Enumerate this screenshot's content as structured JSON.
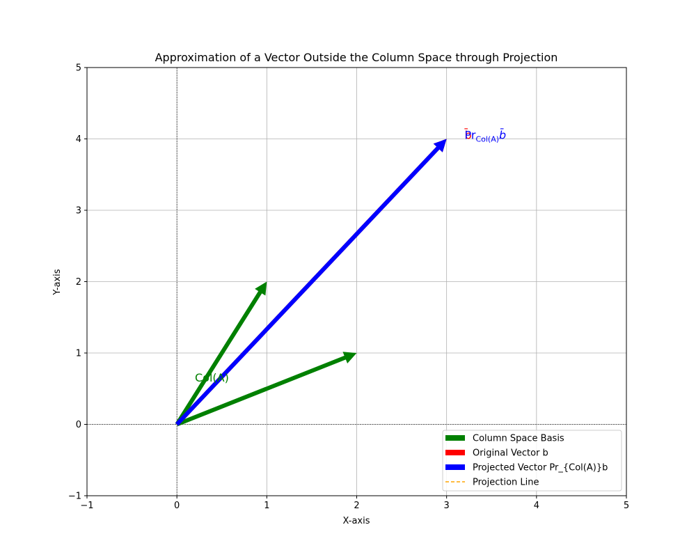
{
  "chart_data": {
    "type": "quiver",
    "title": "Approximation of a Vector Outside the Column Space through Projection",
    "xlabel": "X-axis",
    "ylabel": "Y-axis",
    "xlim": [
      -1,
      5
    ],
    "ylim": [
      -1,
      5
    ],
    "xticks": [
      -1,
      0,
      1,
      2,
      3,
      4,
      5
    ],
    "yticks": [
      -1,
      0,
      1,
      2,
      3,
      4,
      5
    ],
    "x_tick_labels": [
      "−1",
      "0",
      "1",
      "2",
      "3",
      "4",
      "5"
    ],
    "y_tick_labels": [
      "−1",
      "0",
      "1",
      "2",
      "3",
      "4",
      "5"
    ],
    "grid": true,
    "reference_lines": [
      {
        "axis": "x",
        "value": 0
      },
      {
        "axis": "y",
        "value": 0
      }
    ],
    "series": [
      {
        "name": "Column Space Basis",
        "color": "#008000",
        "vectors": [
          {
            "x0": 0,
            "y0": 0,
            "x1": 1,
            "y1": 2
          },
          {
            "x0": 0,
            "y0": 0,
            "x1": 2,
            "y1": 1
          }
        ]
      },
      {
        "name": "Original Vector b",
        "color": "#ff0000",
        "vectors": [
          {
            "x0": 0,
            "y0": 0,
            "x1": 3,
            "y1": 4
          }
        ]
      },
      {
        "name": "Projected Vector Pr_{Col(A)}b",
        "color": "#0000ff",
        "vectors": [
          {
            "x0": 0,
            "y0": 0,
            "x1": 3,
            "y1": 4
          }
        ]
      },
      {
        "name": "Projection Line",
        "color": "#ffa500",
        "style": "dashed",
        "vectors": []
      }
    ],
    "annotations": [
      {
        "id": "col-a",
        "text": "Col(A)",
        "x": 0.2,
        "y": 0.6,
        "color": "#008000"
      },
      {
        "id": "b",
        "text": "b̄",
        "x": 3.2,
        "y": 4.0,
        "color": "#ff0000"
      },
      {
        "id": "pr",
        "main": "Pr",
        "sub": "Col(A)",
        "tail": "b̄",
        "x": 3.2,
        "y": 4.0,
        "color": "#0000ff"
      }
    ],
    "legend": {
      "position": "lower right"
    }
  }
}
